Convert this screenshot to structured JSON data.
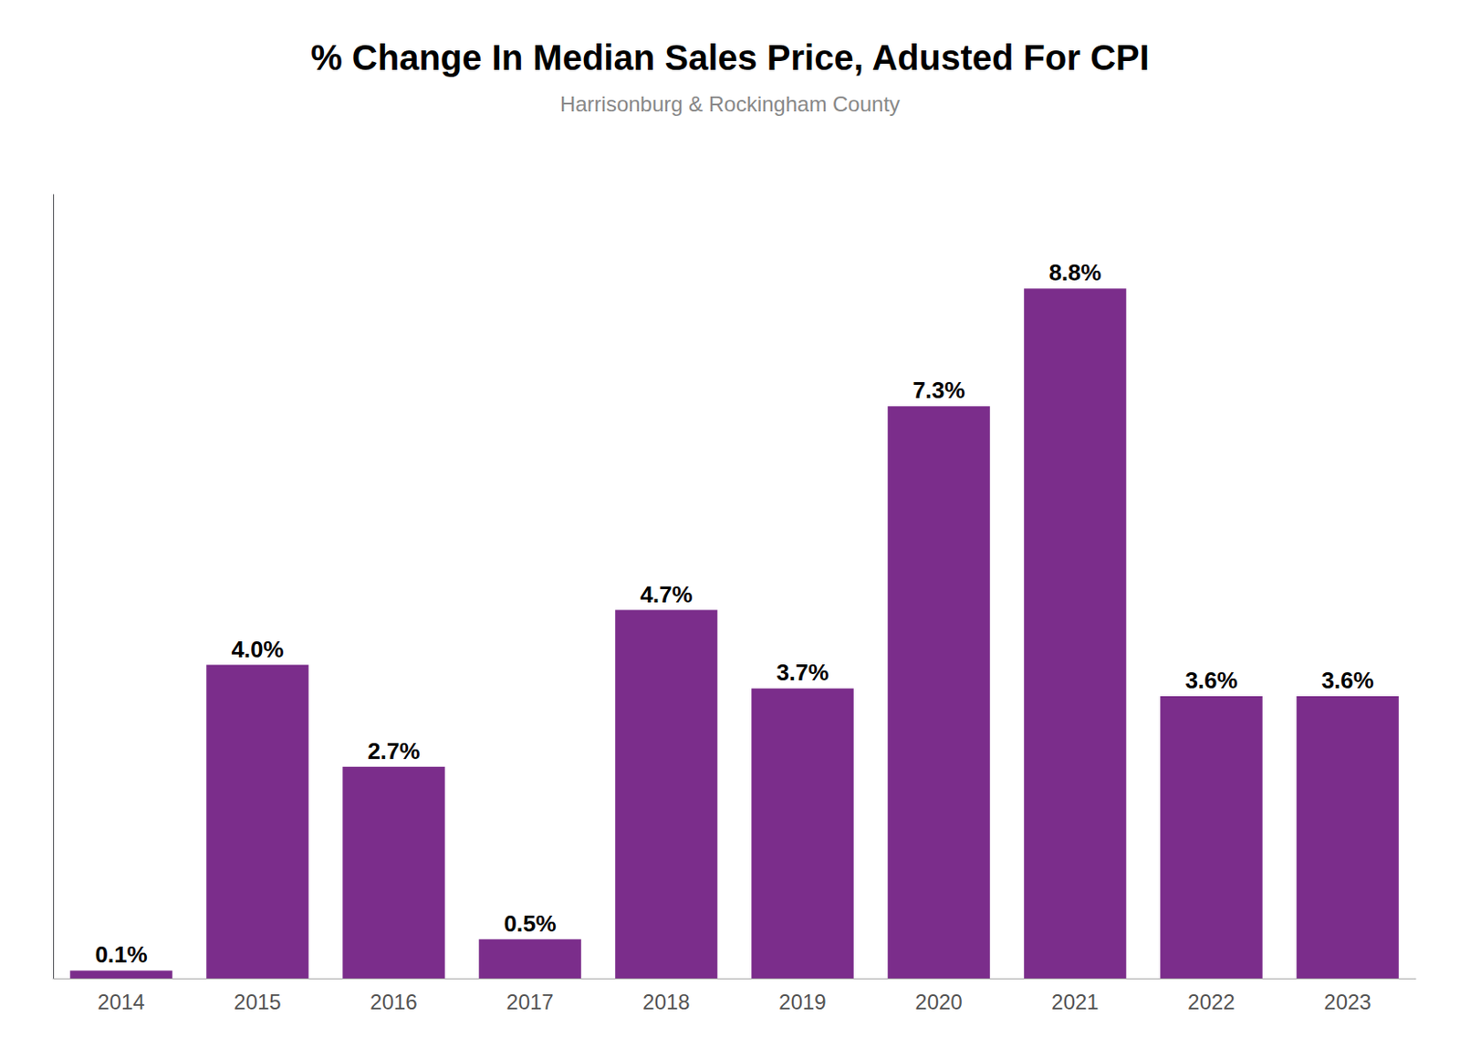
{
  "chart_data": {
    "type": "bar",
    "title": "% Change In Median Sales Price, Adusted For CPI",
    "subtitle": "Harrisonburg & Rockingham County",
    "categories": [
      "2014",
      "2015",
      "2016",
      "2017",
      "2018",
      "2019",
      "2020",
      "2021",
      "2022",
      "2023"
    ],
    "values": [
      0.1,
      4.0,
      2.7,
      0.5,
      4.7,
      3.7,
      7.3,
      8.8,
      3.6,
      3.6
    ],
    "value_labels": [
      "0.1%",
      "4.0%",
      "2.7%",
      "0.5%",
      "4.7%",
      "3.7%",
      "7.3%",
      "8.8%",
      "3.6%",
      "3.6%"
    ],
    "color": "#7B2D8B",
    "ylim": [
      0,
      10
    ],
    "grid": false,
    "data_labels": true,
    "tick_labels": "x"
  }
}
